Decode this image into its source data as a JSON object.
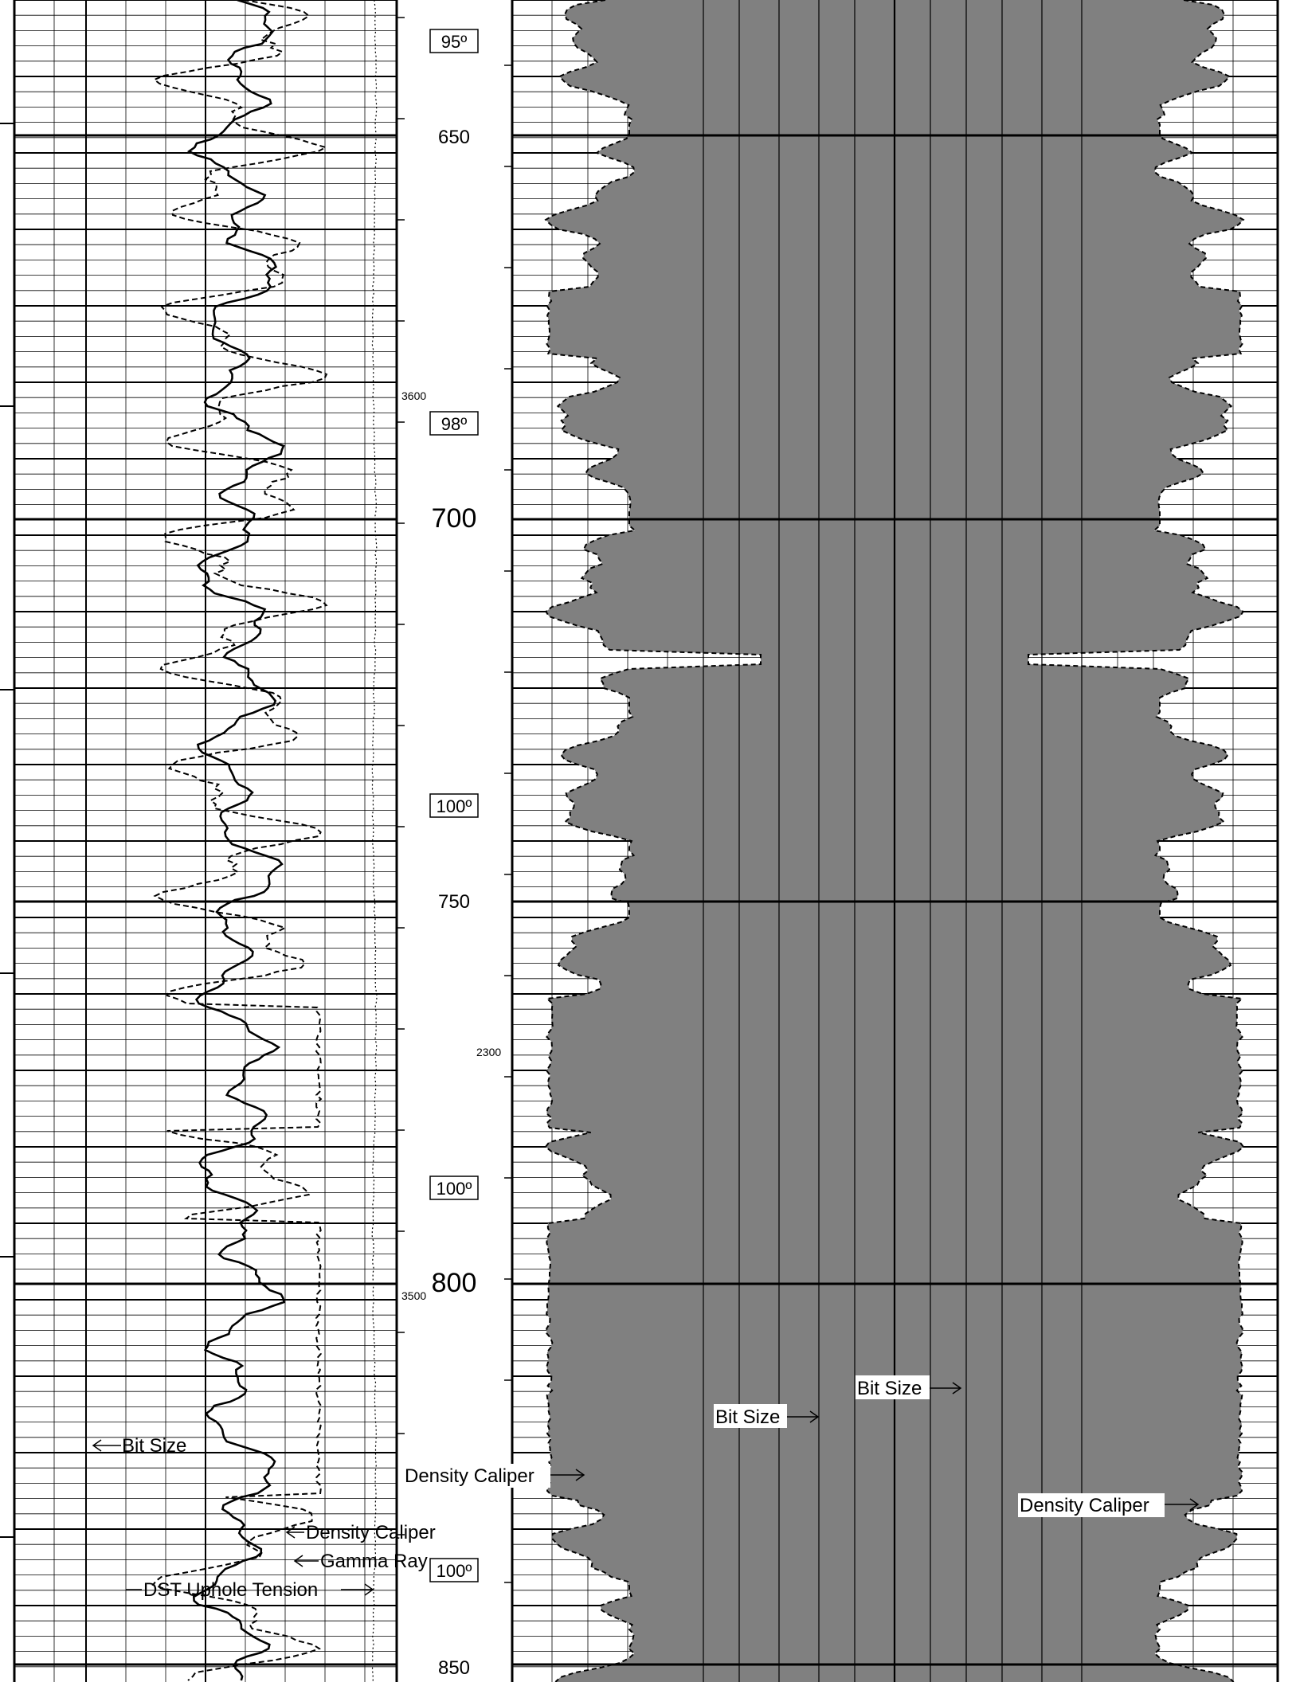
{
  "depth_track": {
    "depth_labels": [
      "650",
      "700",
      "750",
      "800",
      "850"
    ],
    "temperature_labels": [
      "95º",
      "98º",
      "100º",
      "100º",
      "100º"
    ],
    "small_labels": [
      "3600",
      "2300",
      "3500"
    ]
  },
  "curve_labels": {
    "left_bit_size": "Bit Size",
    "left_density_caliper": "Density Caliper",
    "left_gamma_ray": "Gamma Ray",
    "left_dst_tension": "DST Uphole Tension",
    "mid_density_caliper": "Density Caliper",
    "right_bit_size_1": "Bit Size",
    "right_bit_size_2": "Bit Size",
    "right_density_caliper": "Density Caliper"
  },
  "colors": {
    "grid": "#000000",
    "fill": "#808080",
    "background": "#ffffff"
  }
}
